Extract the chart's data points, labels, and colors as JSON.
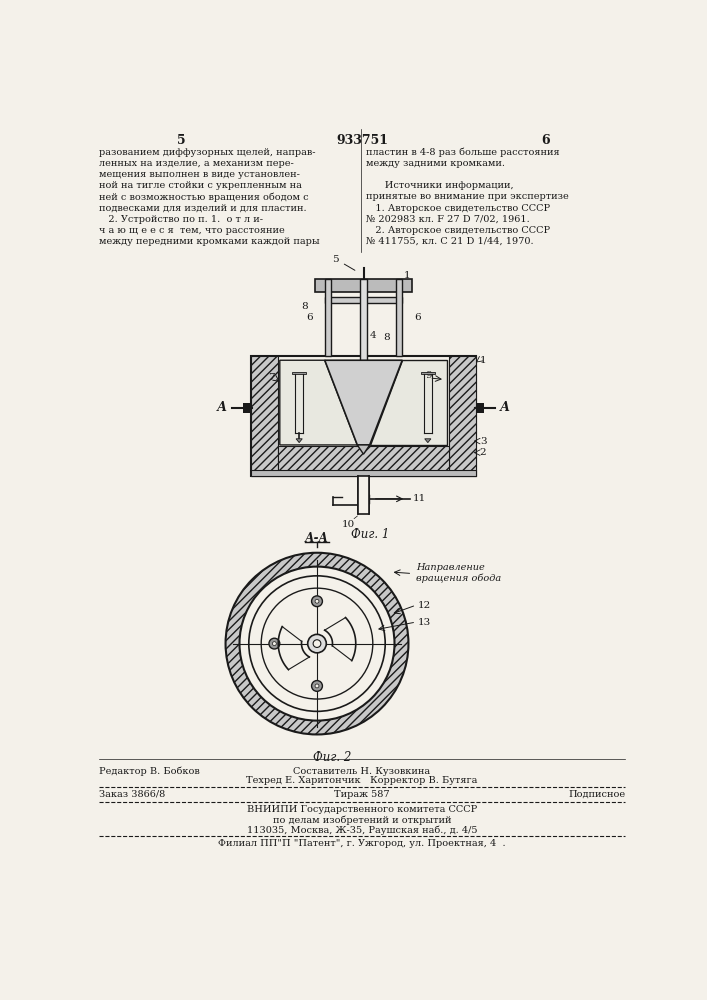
{
  "page_color": "#f4f1ea",
  "title_number": "933751",
  "page_left": "5",
  "page_right": "6",
  "col_left_text": [
    "разованием диффузорных щелей, направ-",
    "ленных на изделие, а механизм пере-",
    "мещения выполнен в виде установлен-",
    "ной на тигле стойки с укрепленным на",
    "ней с возможностью вращения ободом с",
    "подвесками для изделий и для пластин.",
    "   2. Устройство по п. 1.  о т л и-",
    "ч а ю щ е е с я  тем, что расстояние",
    "между передними кромками каждой пары"
  ],
  "col_right_text": [
    "пластин в 4-8 раз больше расстояния",
    "между задними кромками.",
    "",
    "      Источники информации,",
    "принятые во внимание при экспертизе",
    "   1. Авторское свидетельство СССР",
    "№ 202983 кл. F 27 D 7/02, 1961.",
    "   2. Авторское свидетельство СССР",
    "№ 411755, кл. С 21 D 1/44, 1970."
  ],
  "fig1_label": "Фиг. 1",
  "fig2_label": "Фиг. 2",
  "aa_label": "А-А",
  "a_left": "А",
  "a_right": "А",
  "footer_line1_left": "Редактор В. Бобков",
  "footer_line1_center": "Составитель Н. Кузовкина",
  "footer_line2_center": "Техред Е. Харитончик   Корректор В. Бутяга",
  "footer_line3_left": "Заказ 3866/8",
  "footer_line3_center": "Тираж 587",
  "footer_line3_right": "Подписное",
  "footer_line4": "ВНИИПИ Государственного комитета СССР",
  "footer_line5": "по делам изобретений и открытий",
  "footer_line6": "113035, Москва, Ж-35, Раушская наб., д. 4/5",
  "footer_line7": "Филиал ПП\"П \"Патент\", г. Ужгород, ул. Проектная, 4  .",
  "direction_label": "Направление\nвращения обода",
  "text_color": "#1a1a1a",
  "line_color": "#1a1a1a"
}
